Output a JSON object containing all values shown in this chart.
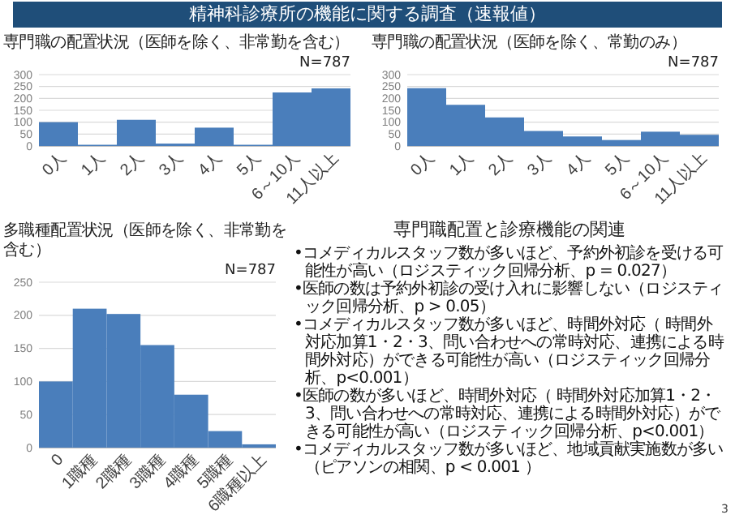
{
  "chart_data": [
    {
      "type": "other",
      "title": "精神科診療所の機能に関する調査（速報値）",
      "annotations": [
        "3"
      ]
    },
    {
      "type": "bar",
      "title": "専門職の配置状況（医師を除く、非常勤を含む）",
      "annotations": [
        "N=787"
      ],
      "categories": [
        "0人",
        "1人",
        "2人",
        "3人",
        "4人",
        "5人",
        "6～10人",
        "11人以上"
      ],
      "values": [
        100,
        5,
        110,
        10,
        77,
        5,
        225,
        242
      ],
      "color": "#4a7ebb",
      "ylim": [
        0,
        300
      ],
      "yticks": [
        0,
        50,
        100,
        150,
        200,
        250,
        300
      ],
      "grid": "y"
    },
    {
      "type": "bar",
      "title": "専門職の配置状況（医師を除く、常勤のみ）",
      "annotations": [
        "N=787"
      ],
      "categories": [
        "0人",
        "1人",
        "2人",
        "3人",
        "4人",
        "5人",
        "6～10人",
        "11人以上"
      ],
      "values": [
        243,
        173,
        120,
        63,
        40,
        25,
        60,
        47
      ],
      "color": "#4a7ebb",
      "ylim": [
        0,
        300
      ],
      "yticks": [
        0,
        50,
        100,
        150,
        200,
        250,
        300
      ],
      "grid": "y"
    },
    {
      "type": "bar",
      "title": "多職種配置状況（医師を除く、非常勤を含む）",
      "annotations": [
        "N=787"
      ],
      "categories": [
        "0",
        "1職種",
        "2職種",
        "3職種",
        "4職種",
        "5職種",
        "6職種以上"
      ],
      "values": [
        100,
        210,
        202,
        155,
        80,
        25,
        5
      ],
      "color": "#4a7ebb",
      "ylim": [
        0,
        250
      ],
      "yticks": [
        0,
        50,
        100,
        150,
        200,
        250
      ],
      "grid": "y"
    },
    {
      "type": "other",
      "title": "専門職配置と診療機能の関連",
      "annotations": [
        "•コメディカルスタッフ数が多いほど、予約外初診を受ける可能性が高い（ロジスティック回帰分析、p = 0.027）",
        "•医師の数は予約外初診の受け入れに影響しない（ロジスティック回帰分析、p > 0.05）",
        "•コメディカルスタッフ数が多いほど、時間外対応（ 時間外対応加算1・2・3、問い合わせへの常時対応、連携による時間外対応）ができる可能性が高い（ロジスティック回帰分析、p<0.001）",
        "•医師の数が多いほど、時間外対応（ 時間外対応加算1・2・3、問い合わせへの常時対応、連携による時間外対応）ができる可能性が高い（ロジスティック回帰分析、p<0.001）",
        "•コメディカルスタッフ数が多いほど、地域貢献実施数が多い（ピアソンの相関、p < 0.001 ）"
      ]
    }
  ]
}
